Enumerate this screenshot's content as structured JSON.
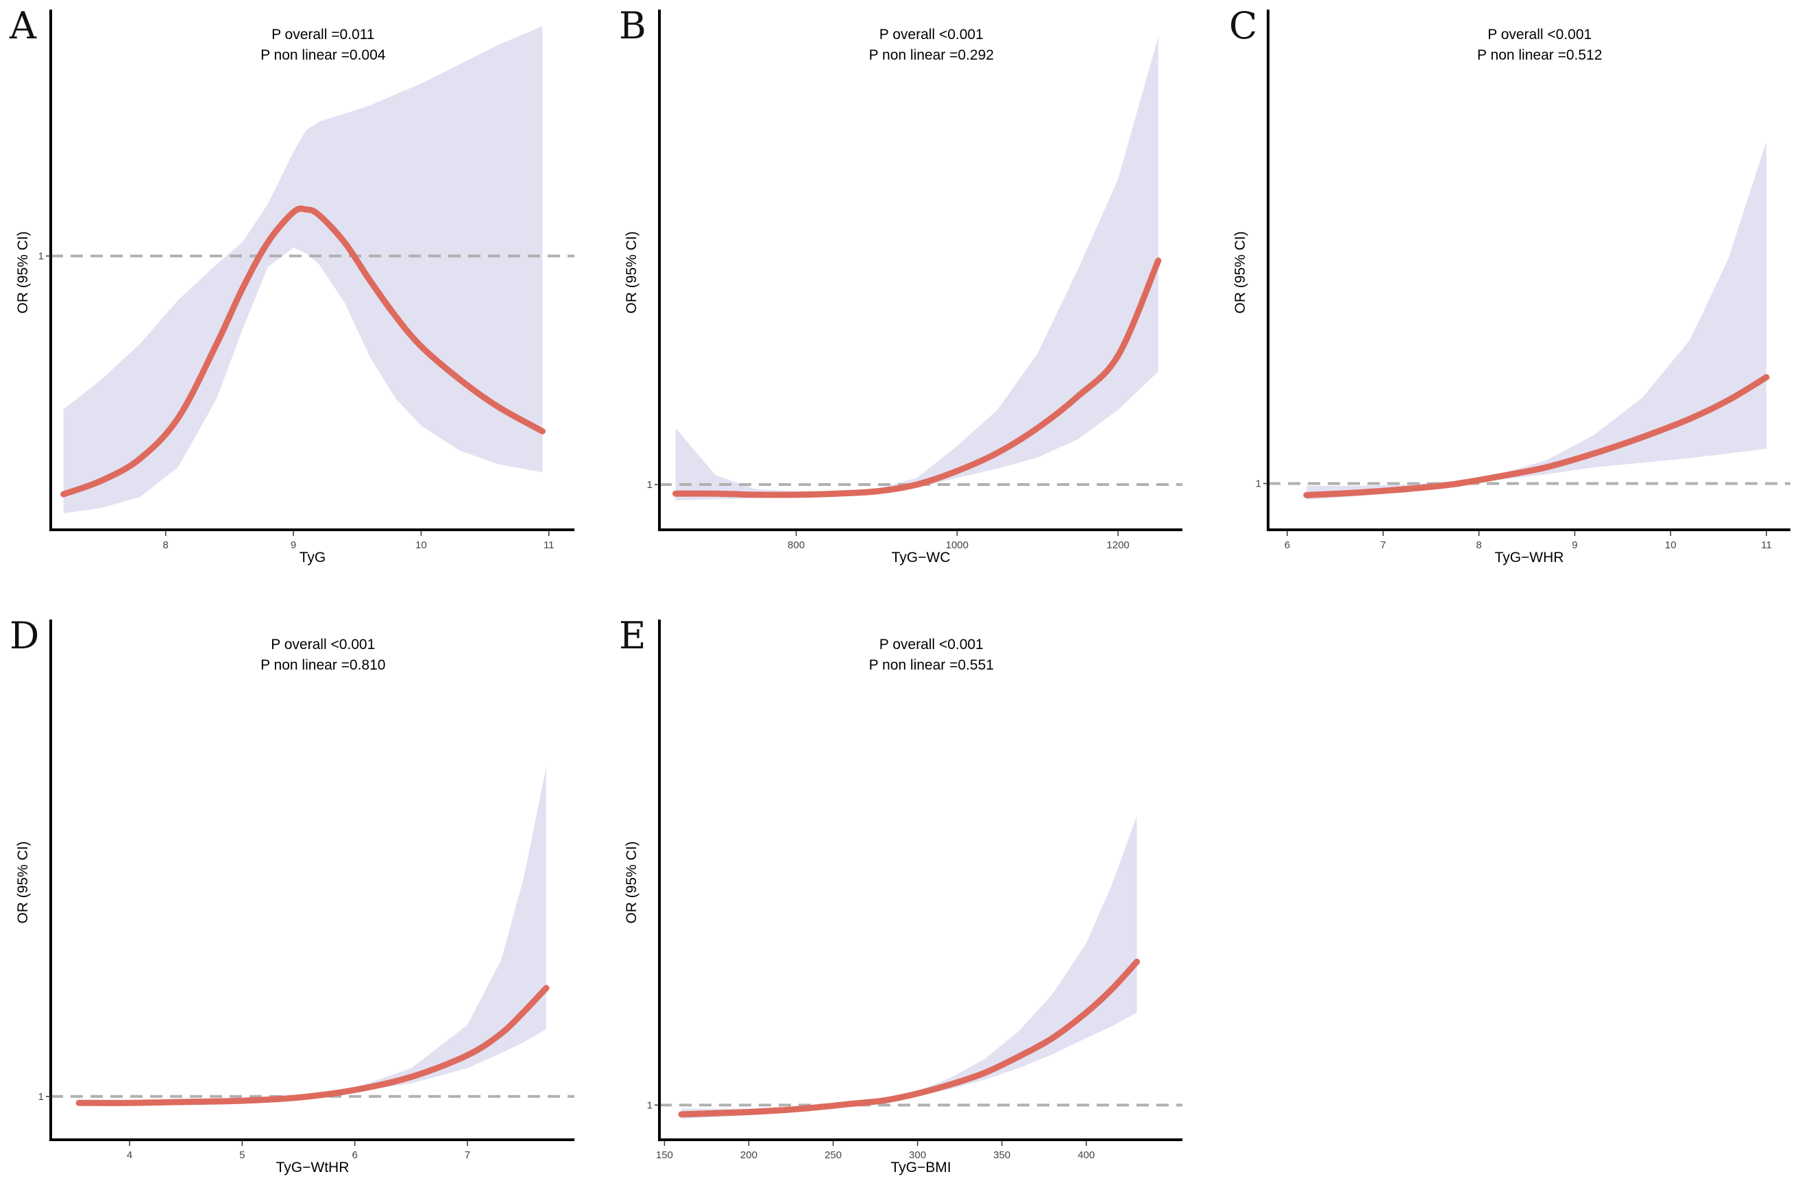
{
  "figure": {
    "colors": {
      "curve": "#dd6a5d",
      "ci_band": "#e1e1f2",
      "reference_line": "#b0b0b0",
      "axis": "#000000"
    }
  },
  "chart_data": [
    {
      "id": "A",
      "type": "line",
      "panel_label": "A",
      "annotation": [
        "P overall =0.011",
        "P non linear =0.004"
      ],
      "xlabel": "TyG",
      "ylabel": "OR (95% CI)",
      "xlim": [
        7.1,
        11.2
      ],
      "xticks": [
        8,
        9,
        10,
        11
      ],
      "ylim": [
        0.0,
        1.9
      ],
      "yticks": [
        1
      ],
      "reference_y": 1,
      "series": [
        {
          "name": "OR",
          "x": [
            7.2,
            7.5,
            7.8,
            8.1,
            8.4,
            8.6,
            8.8,
            9.0,
            9.1,
            9.2,
            9.4,
            9.6,
            9.8,
            10.0,
            10.3,
            10.6,
            10.95
          ],
          "values": [
            0.13,
            0.18,
            0.26,
            0.41,
            0.68,
            0.88,
            1.05,
            1.16,
            1.17,
            1.15,
            1.05,
            0.91,
            0.78,
            0.67,
            0.55,
            0.45,
            0.36
          ]
        },
        {
          "name": "CI lower",
          "x": [
            7.2,
            7.5,
            7.8,
            8.1,
            8.4,
            8.6,
            8.8,
            9.0,
            9.1,
            9.2,
            9.4,
            9.6,
            9.8,
            10.0,
            10.3,
            10.6,
            10.95
          ],
          "values": [
            0.06,
            0.08,
            0.12,
            0.23,
            0.48,
            0.73,
            0.96,
            1.03,
            1.01,
            0.97,
            0.83,
            0.63,
            0.48,
            0.38,
            0.29,
            0.24,
            0.21
          ]
        },
        {
          "name": "CI upper",
          "x": [
            7.2,
            7.5,
            7.8,
            8.1,
            8.4,
            8.6,
            8.8,
            9.0,
            9.1,
            9.2,
            9.4,
            9.6,
            9.8,
            10.0,
            10.3,
            10.6,
            10.95
          ],
          "values": [
            0.44,
            0.55,
            0.68,
            0.84,
            0.97,
            1.05,
            1.19,
            1.38,
            1.46,
            1.49,
            1.52,
            1.55,
            1.59,
            1.63,
            1.7,
            1.77,
            1.84
          ]
        }
      ]
    },
    {
      "id": "B",
      "type": "line",
      "panel_label": "B",
      "annotation": [
        "P overall <0.001",
        "P non linear =0.292"
      ],
      "xlabel": "TyG−WC",
      "ylabel": "OR (95% CI)",
      "xlim": [
        630,
        1280
      ],
      "xticks": [
        800,
        1000,
        1200
      ],
      "ylim": [
        0.8,
        3.1
      ],
      "yticks": [
        1
      ],
      "reference_y": 1,
      "series": [
        {
          "name": "OR",
          "x": [
            650,
            700,
            750,
            800,
            850,
            900,
            950,
            1000,
            1050,
            1100,
            1150,
            1200,
            1250
          ],
          "values": [
            0.96,
            0.96,
            0.955,
            0.955,
            0.96,
            0.97,
            1.0,
            1.06,
            1.14,
            1.25,
            1.39,
            1.57,
            1.99
          ]
        },
        {
          "name": "CI lower",
          "x": [
            650,
            700,
            750,
            800,
            850,
            900,
            950,
            1000,
            1050,
            1100,
            1150,
            1200,
            1250
          ],
          "values": [
            0.93,
            0.935,
            0.94,
            0.945,
            0.95,
            0.96,
            0.985,
            1.03,
            1.07,
            1.12,
            1.2,
            1.33,
            1.5
          ]
        },
        {
          "name": "CI upper",
          "x": [
            650,
            700,
            750,
            800,
            850,
            900,
            950,
            1000,
            1050,
            1100,
            1150,
            1200,
            1250
          ],
          "values": [
            1.25,
            1.04,
            0.98,
            0.97,
            0.97,
            0.98,
            1.03,
            1.17,
            1.33,
            1.58,
            1.95,
            2.35,
            2.98
          ]
        }
      ]
    },
    {
      "id": "C",
      "type": "line",
      "panel_label": "C",
      "annotation": [
        "P overall <0.001",
        "P non linear =0.512"
      ],
      "xlabel": "TyG−WHR",
      "ylabel": "OR (95% CI)",
      "xlim": [
        5.8,
        11.25
      ],
      "xticks": [
        6,
        7,
        8,
        9,
        10,
        11
      ],
      "ylim": [
        0.8,
        3.05
      ],
      "yticks": [
        1
      ],
      "reference_y": 1,
      "series": [
        {
          "name": "OR",
          "x": [
            6.2,
            6.7,
            7.2,
            7.7,
            8.2,
            8.7,
            9.2,
            9.7,
            10.2,
            10.6,
            11.0
          ],
          "values": [
            0.95,
            0.96,
            0.975,
            0.995,
            1.03,
            1.07,
            1.13,
            1.2,
            1.28,
            1.36,
            1.46
          ]
        },
        {
          "name": "CI lower",
          "x": [
            6.2,
            6.7,
            7.2,
            7.7,
            8.2,
            8.7,
            9.2,
            9.7,
            10.2,
            10.6,
            11.0
          ],
          "values": [
            0.93,
            0.945,
            0.96,
            0.985,
            1.015,
            1.04,
            1.07,
            1.09,
            1.11,
            1.13,
            1.15
          ]
        },
        {
          "name": "CI upper",
          "x": [
            6.2,
            6.7,
            7.2,
            7.7,
            8.2,
            8.7,
            9.2,
            9.7,
            10.2,
            10.6,
            11.0
          ],
          "values": [
            0.99,
            0.99,
            0.995,
            1.01,
            1.04,
            1.1,
            1.21,
            1.37,
            1.62,
            1.97,
            2.48
          ]
        }
      ]
    },
    {
      "id": "D",
      "type": "line",
      "panel_label": "D",
      "annotation": [
        "P overall <0.001",
        "P non linear =0.810"
      ],
      "xlabel": "TyG−WtHR",
      "ylabel": "OR (95% CI)",
      "xlim": [
        3.3,
        7.95
      ],
      "xticks": [
        4,
        5,
        6,
        7
      ],
      "ylim": [
        0.8,
        3.2
      ],
      "yticks": [
        1
      ],
      "reference_y": 1,
      "series": [
        {
          "name": "OR",
          "x": [
            3.55,
            4.0,
            4.5,
            5.0,
            5.5,
            6.0,
            6.5,
            7.0,
            7.3,
            7.5,
            7.7
          ],
          "values": [
            0.97,
            0.97,
            0.975,
            0.98,
            0.995,
            1.03,
            1.09,
            1.19,
            1.29,
            1.39,
            1.5
          ]
        },
        {
          "name": "CI lower",
          "x": [
            3.55,
            4.0,
            4.5,
            5.0,
            5.5,
            6.0,
            6.5,
            7.0,
            7.3,
            7.5,
            7.7
          ],
          "values": [
            0.965,
            0.966,
            0.97,
            0.975,
            0.99,
            1.02,
            1.06,
            1.13,
            1.2,
            1.25,
            1.31
          ]
        },
        {
          "name": "CI upper",
          "x": [
            3.55,
            4.0,
            4.5,
            5.0,
            5.5,
            6.0,
            6.5,
            7.0,
            7.3,
            7.5,
            7.7
          ],
          "values": [
            0.98,
            0.98,
            0.985,
            0.99,
            1.005,
            1.04,
            1.13,
            1.33,
            1.63,
            2.01,
            2.52
          ]
        }
      ]
    },
    {
      "id": "E",
      "type": "line",
      "panel_label": "E",
      "annotation": [
        "P overall <0.001",
        "P non linear =0.551"
      ],
      "xlabel": "TyG−BMI",
      "ylabel": "OR (95% CI)",
      "xlim": [
        147,
        457
      ],
      "xticks": [
        150,
        200,
        250,
        300,
        350,
        400
      ],
      "ylim": [
        0.85,
        3.1
      ],
      "yticks": [
        1
      ],
      "reference_y": 1,
      "series": [
        {
          "name": "OR",
          "x": [
            160,
            180,
            200,
            220,
            240,
            260,
            280,
            300,
            320,
            340,
            360,
            380,
            400,
            415,
            430
          ],
          "values": [
            0.96,
            0.965,
            0.97,
            0.978,
            0.99,
            1.005,
            1.02,
            1.05,
            1.09,
            1.14,
            1.21,
            1.29,
            1.4,
            1.5,
            1.62
          ]
        },
        {
          "name": "CI lower",
          "x": [
            160,
            180,
            200,
            220,
            240,
            260,
            280,
            300,
            320,
            340,
            360,
            380,
            400,
            415,
            430
          ],
          "values": [
            0.94,
            0.948,
            0.956,
            0.966,
            0.98,
            0.995,
            1.015,
            1.04,
            1.07,
            1.11,
            1.16,
            1.22,
            1.29,
            1.34,
            1.4
          ]
        },
        {
          "name": "CI upper",
          "x": [
            160,
            180,
            200,
            220,
            240,
            260,
            280,
            300,
            320,
            340,
            360,
            380,
            400,
            415,
            430
          ],
          "values": [
            0.985,
            0.985,
            0.985,
            0.99,
            1.0,
            1.015,
            1.03,
            1.06,
            1.12,
            1.2,
            1.32,
            1.48,
            1.7,
            1.95,
            2.25
          ]
        }
      ]
    }
  ]
}
